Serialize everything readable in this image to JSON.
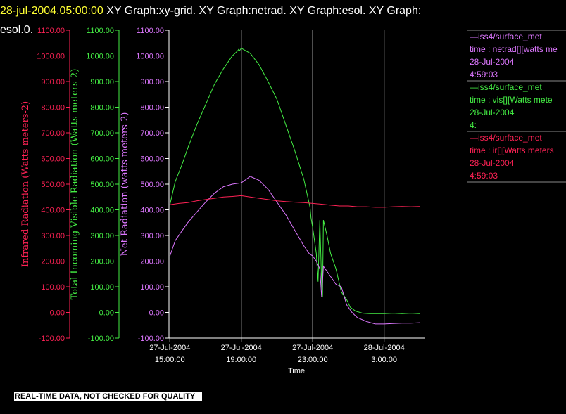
{
  "header": {
    "timestamp": "28-jul-2004,05:00:00",
    "title_rest": "  XY Graph:xy-grid.  XY Graph:netrad.  XY Graph:esol.  XY Graph:",
    "title_line2": "esol.0."
  },
  "footer": {
    "quality_notice": "REAL-TIME DATA, NOT CHECKED FOR QUALITY"
  },
  "colors": {
    "ir": "#ff2255",
    "vis": "#44ee44",
    "net": "#dd77ff",
    "grid": "#ffffff",
    "bg": "#000000"
  },
  "chart_data": {
    "type": "line",
    "xlabel": "Time",
    "x_ticks": [
      {
        "hours": 0,
        "line1": "27-Jul-2004",
        "line2": "15:00:00"
      },
      {
        "hours": 4,
        "line1": "27-Jul-2004",
        "line2": "19:00:00"
      },
      {
        "hours": 8,
        "line1": "27-Jul-2004",
        "line2": "23:00:00"
      },
      {
        "hours": 12,
        "line1": "28-Jul-2004",
        "line2": "3:00:00"
      }
    ],
    "x_range_hours": [
      -0.05,
      14.3
    ],
    "axes": [
      {
        "id": "ir",
        "label": "Infrared Radiation (Watts meters-2)",
        "ylim": [
          -100,
          1100
        ],
        "ticks": [
          "-100.00",
          "0.00",
          "100.00",
          "200.00",
          "300.00",
          "400.00",
          "500.00",
          "600.00",
          "700.00",
          "800.00",
          "900.00",
          "1000.00",
          "1100.00"
        ]
      },
      {
        "id": "vis",
        "label": "Total Incoming Visible Radiation (Watts meters-2)",
        "ylim": [
          -100,
          1100
        ],
        "ticks": [
          "-100.00",
          "0.00",
          "100.00",
          "200.00",
          "300.00",
          "400.00",
          "500.00",
          "600.00",
          "700.00",
          "800.00",
          "900.00",
          "1000.00",
          "1100.00"
        ]
      },
      {
        "id": "net",
        "label": "Net Radiation (watts meters-2)",
        "ylim": [
          -100,
          1100
        ],
        "ticks": [
          "-100.00",
          "0.00",
          "100.00",
          "200.00",
          "300.00",
          "400.00",
          "500.00",
          "600.00",
          "700.00",
          "800.00",
          "900.00",
          "1000.00",
          "1100.00"
        ]
      }
    ],
    "vertical_gridlines_hours": [
      4,
      8,
      12
    ],
    "series": [
      {
        "id": "vis",
        "color": "#44ee44",
        "x": [
          0,
          0.3,
          0.7,
          1.0,
          1.5,
          2.0,
          2.5,
          3.0,
          3.5,
          3.8,
          3.85,
          3.9,
          4.0,
          4.5,
          5.0,
          5.5,
          6.0,
          6.5,
          7.0,
          7.5,
          7.85,
          7.9,
          8.0,
          8.2,
          8.3,
          8.4,
          8.5,
          8.55,
          8.6,
          8.8,
          9.0,
          9.3,
          9.6,
          9.9,
          10.1,
          10.4,
          10.8,
          11.2,
          11.5,
          12.0,
          12.5,
          13.0,
          13.5,
          14.0
        ],
        "y": [
          420,
          510,
          580,
          640,
          730,
          810,
          890,
          950,
          1000,
          1020,
          1025,
          1020,
          1030,
          1010,
          965,
          900,
          830,
          730,
          630,
          520,
          410,
          370,
          330,
          230,
          120,
          360,
          110,
          60,
          360,
          300,
          230,
          170,
          80,
          50,
          20,
          5,
          -3,
          -5,
          -5,
          -5,
          -3,
          -5,
          -3,
          -5
        ]
      },
      {
        "id": "net",
        "color": "#dd77ff",
        "x": [
          0,
          0.3,
          0.7,
          1.0,
          1.5,
          2.0,
          2.5,
          3.0,
          3.5,
          4.0,
          4.5,
          5.0,
          5.5,
          6.0,
          6.5,
          7.0,
          7.5,
          7.8,
          8.0,
          8.2,
          8.4,
          8.5,
          8.6,
          8.8,
          9.0,
          9.3,
          9.6,
          9.9,
          10.2,
          10.5,
          11.0,
          11.5,
          12.0,
          12.5,
          13.0,
          13.5,
          14.0
        ],
        "y": [
          220,
          280,
          320,
          350,
          390,
          430,
          465,
          490,
          500,
          505,
          530,
          515,
          480,
          430,
          380,
          320,
          260,
          230,
          220,
          200,
          170,
          60,
          180,
          160,
          140,
          110,
          100,
          30,
          0,
          -20,
          -35,
          -45,
          -45,
          -43,
          -42,
          -42,
          -40
        ]
      },
      {
        "id": "ir",
        "color": "#ff2255",
        "x": [
          0,
          0.5,
          1.0,
          1.5,
          2.0,
          2.5,
          3.0,
          3.5,
          4.0,
          4.5,
          5.0,
          5.5,
          6.0,
          6.5,
          7.0,
          7.5,
          8.0,
          8.5,
          9.0,
          9.5,
          10.0,
          10.5,
          11.0,
          11.5,
          12.0,
          12.5,
          13.0,
          13.5,
          14.0
        ],
        "y": [
          420,
          425,
          428,
          435,
          440,
          445,
          450,
          452,
          455,
          450,
          445,
          440,
          435,
          432,
          430,
          428,
          425,
          422,
          418,
          415,
          415,
          412,
          412,
          410,
          410,
          412,
          413,
          412,
          413
        ]
      }
    ]
  },
  "legend": [
    {
      "id": "vis",
      "color": "#dd77ff",
      "line1": "—iss4/surface_met",
      "line2": "time : netrad[][watts me",
      "line3": "28-Jul-2004",
      "line4": "4:59:03"
    },
    {
      "id": "net",
      "color": "#44ee44",
      "line1": "—iss4/surface_met",
      "line2": "time : vis[][Watts mete",
      "line3": "28-Jul-2004",
      "line4": "4:"
    },
    {
      "id": "ir",
      "color": "#ff2255",
      "line1": "—iss4/surface_met",
      "line2": "time : ir[][Watts meters",
      "line3": "28-Jul-2004",
      "line4": "4:59:03"
    }
  ]
}
